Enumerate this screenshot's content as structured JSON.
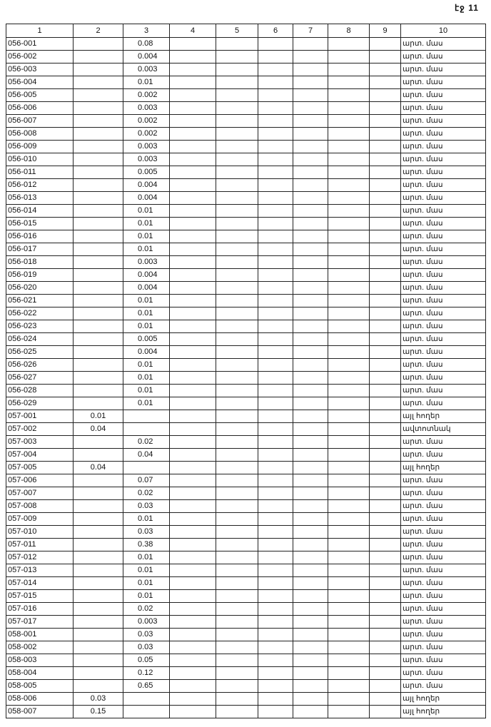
{
  "page_label": "էջ 11",
  "headers": [
    "1",
    "2",
    "3",
    "4",
    "5",
    "6",
    "7",
    "8",
    "9",
    "10"
  ],
  "rows": [
    [
      "056-001",
      "",
      "0.08",
      "արտ. մաս"
    ],
    [
      "056-002",
      "",
      "0.004",
      "արտ. մաս"
    ],
    [
      "056-003",
      "",
      "0.003",
      "արտ. մաս"
    ],
    [
      "056-004",
      "",
      "0.01",
      "արտ. մաս"
    ],
    [
      "056-005",
      "",
      "0.002",
      "արտ. մաս"
    ],
    [
      "056-006",
      "",
      "0.003",
      "արտ. մաս"
    ],
    [
      "056-007",
      "",
      "0.002",
      "արտ. մաս"
    ],
    [
      "056-008",
      "",
      "0.002",
      "արտ. մաս"
    ],
    [
      "056-009",
      "",
      "0.003",
      "արտ. մաս"
    ],
    [
      "056-010",
      "",
      "0.003",
      "արտ. մաս"
    ],
    [
      "056-011",
      "",
      "0.005",
      "արտ. մաս"
    ],
    [
      "056-012",
      "",
      "0.004",
      "արտ. մաս"
    ],
    [
      "056-013",
      "",
      "0.004",
      "արտ. մաս"
    ],
    [
      "056-014",
      "",
      "0.01",
      "արտ. մաս"
    ],
    [
      "056-015",
      "",
      "0.01",
      "արտ. մաս"
    ],
    [
      "056-016",
      "",
      "0.01",
      "արտ. մաս"
    ],
    [
      "056-017",
      "",
      "0.01",
      "արտ. մաս"
    ],
    [
      "056-018",
      "",
      "0.003",
      "արտ. մաս"
    ],
    [
      "056-019",
      "",
      "0.004",
      "արտ. մաս"
    ],
    [
      "056-020",
      "",
      "0.004",
      "արտ. մաս"
    ],
    [
      "056-021",
      "",
      "0.01",
      "արտ. մաս"
    ],
    [
      "056-022",
      "",
      "0.01",
      "արտ. մաս"
    ],
    [
      "056-023",
      "",
      "0.01",
      "արտ. մաս"
    ],
    [
      "056-024",
      "",
      "0.005",
      "արտ. մաս"
    ],
    [
      "056-025",
      "",
      "0.004",
      "արտ. մաս"
    ],
    [
      "056-026",
      "",
      "0.01",
      "արտ. մաս"
    ],
    [
      "056-027",
      "",
      "0.01",
      "արտ. մաս"
    ],
    [
      "056-028",
      "",
      "0.01",
      "արտ. մաս"
    ],
    [
      "056-029",
      "",
      "0.01",
      "արտ. մաս"
    ],
    [
      "057-001",
      "0.01",
      "",
      "այլ հողեր"
    ],
    [
      "057-002",
      "0.04",
      "",
      "ավտոտնակ"
    ],
    [
      "057-003",
      "",
      "0.02",
      "արտ. մաս"
    ],
    [
      "057-004",
      "",
      "0.04",
      "արտ. մաս"
    ],
    [
      "057-005",
      "0.04",
      "",
      "այլ հողեր"
    ],
    [
      "057-006",
      "",
      "0.07",
      "արտ. մաս"
    ],
    [
      "057-007",
      "",
      "0.02",
      "արտ. մաս"
    ],
    [
      "057-008",
      "",
      "0.03",
      "արտ. մաս"
    ],
    [
      "057-009",
      "",
      "0.01",
      "արտ. մաս"
    ],
    [
      "057-010",
      "",
      "0.03",
      "արտ. մաս"
    ],
    [
      "057-011",
      "",
      "0.38",
      "արտ. մաս"
    ],
    [
      "057-012",
      "",
      "0.01",
      "արտ. մաս"
    ],
    [
      "057-013",
      "",
      "0.01",
      "արտ. մաս"
    ],
    [
      "057-014",
      "",
      "0.01",
      "արտ. մաս"
    ],
    [
      "057-015",
      "",
      "0.01",
      "արտ. մաս"
    ],
    [
      "057-016",
      "",
      "0.02",
      "արտ. մաս"
    ],
    [
      "057-017",
      "",
      "0.003",
      "արտ. մաս"
    ],
    [
      "058-001",
      "",
      "0.03",
      "արտ. մաս"
    ],
    [
      "058-002",
      "",
      "0.03",
      "արտ. մաս"
    ],
    [
      "058-003",
      "",
      "0.05",
      "արտ. մաս"
    ],
    [
      "058-004",
      "",
      "0.12",
      "արտ. մաս"
    ],
    [
      "058-005",
      "",
      "0.65",
      "արտ. մաս"
    ],
    [
      "058-006",
      "0.03",
      "",
      "այլ հողեր"
    ],
    [
      "058-007",
      "0.15",
      "",
      "այլ հողեր"
    ]
  ]
}
